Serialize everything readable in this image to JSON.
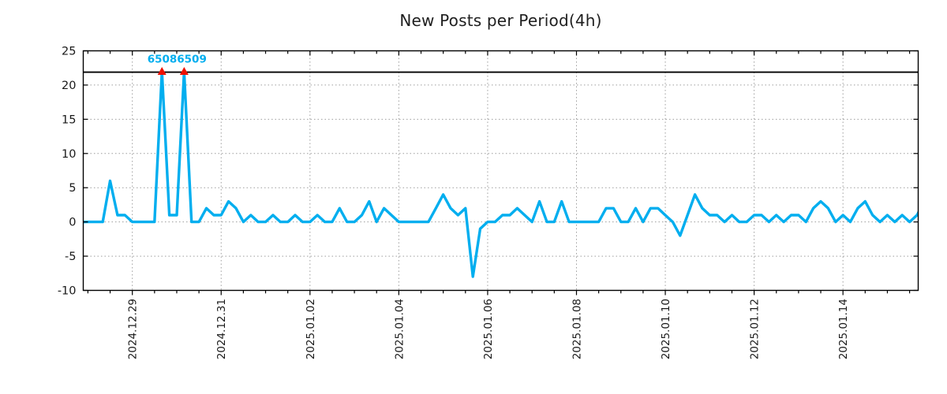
{
  "page": {
    "title": "New Posts per Period(4h)"
  },
  "chart_data": {
    "type": "line",
    "title": "New Posts per Period(4h)",
    "x_start": "2024.12.28 00:00",
    "x_step_hours": 4,
    "x_tick_labels": [
      "2024.12.29",
      "2024.12.31",
      "2025.01.02",
      "2025.01.04",
      "2025.01.06",
      "2025.01.08",
      "2025.01.10",
      "2025.01.12",
      "2025.01.14"
    ],
    "x_tick_indices": [
      6,
      18,
      30,
      42,
      54,
      66,
      78,
      90,
      102
    ],
    "x_minor_tick_step": 3,
    "ylim": [
      -10,
      25
    ],
    "y_ticks": [
      -10,
      -5,
      0,
      5,
      10,
      15,
      20,
      25
    ],
    "y_tick_labels": [
      "-10",
      "-5",
      "0",
      "5",
      "10",
      "15",
      "20",
      "25"
    ],
    "grid": true,
    "values": [
      0,
      0,
      0,
      6,
      1,
      1,
      0,
      0,
      0,
      0,
      22,
      1,
      1,
      22,
      0,
      0,
      2,
      1,
      1,
      3,
      2,
      0,
      1,
      0,
      0,
      1,
      0,
      0,
      1,
      0,
      0,
      1,
      0,
      0,
      2,
      0,
      0,
      1,
      3,
      0,
      2,
      1,
      0,
      0,
      0,
      0,
      0,
      2,
      4,
      2,
      1,
      2,
      -8,
      -1,
      0,
      0,
      1,
      1,
      2,
      1,
      0,
      3,
      0,
      0,
      3,
      0,
      0,
      0,
      0,
      0,
      2,
      2,
      0,
      0,
      2,
      0,
      2,
      2,
      1,
      0,
      -2,
      1,
      4,
      2,
      1,
      1,
      0,
      1,
      0,
      0,
      1,
      1,
      0,
      1,
      0,
      1,
      1,
      0,
      2,
      3,
      2,
      0,
      1,
      0,
      2,
      3,
      1,
      0,
      1,
      0,
      1,
      0,
      1,
      3
    ],
    "max_line_value": 22,
    "peak_markers": {
      "indices": [
        10,
        13
      ],
      "value": 22,
      "label": "65086509"
    },
    "colors": {
      "line": "#00aeef",
      "marker": "#ee1100",
      "annotation": "#00aeef",
      "grid": "#9e9e9e",
      "axis": "#000000",
      "text": "#1a1a1a",
      "max_line": "#000000"
    }
  }
}
